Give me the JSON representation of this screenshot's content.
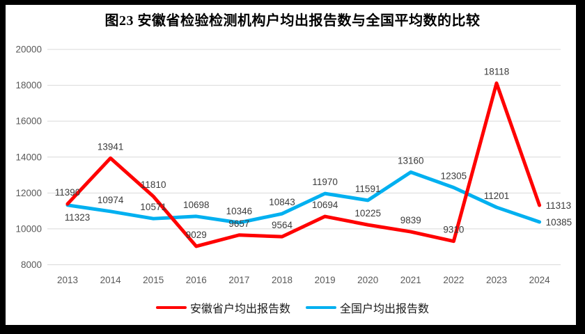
{
  "title": "图23 安徽省检验检测机构户均出报告数与全国平均数的比较",
  "legend": [
    {
      "id": "anhui",
      "label": "安徽省户均出报告数",
      "color": "#FF0000"
    },
    {
      "id": "national",
      "label": "全国户均出报告数",
      "color": "#00B0F0"
    }
  ],
  "colors": {
    "grid": "#D9D9D9",
    "tick_label": "#595959",
    "data_label": "#3B3B3B",
    "border": "#000000"
  },
  "chart_data": {
    "type": "line",
    "title": "图23 安徽省检验检测机构户均出报告数与全国平均数的比较",
    "categories": [
      "2013",
      "2014",
      "2015",
      "2016",
      "2017",
      "2018",
      "2019",
      "2020",
      "2021",
      "2022",
      "2023",
      "2024"
    ],
    "series": [
      {
        "id": "anhui",
        "name": "安徽省户均出报告数",
        "color": "#FF0000",
        "values": [
          11390,
          13941,
          11810,
          9029,
          9657,
          9564,
          10694,
          10225,
          9839,
          9310,
          18118,
          11313
        ],
        "label_pos": [
          "above",
          "above",
          "above",
          "above",
          "above",
          "above",
          "above",
          "above",
          "above",
          "above",
          "above",
          "right"
        ]
      },
      {
        "id": "national",
        "name": "全国户均出报告数",
        "color": "#00B0F0",
        "values": [
          11323,
          10974,
          10571,
          10698,
          10346,
          10843,
          11970,
          11591,
          13160,
          12305,
          11201,
          10385
        ],
        "label_pos": [
          "below",
          "above",
          "above",
          "above",
          "above",
          "above",
          "above",
          "above",
          "above",
          "above",
          "above",
          "right"
        ]
      }
    ],
    "y_ticks": [
      8000,
      10000,
      12000,
      14000,
      16000,
      18000,
      20000
    ],
    "ylim": [
      8000,
      20000
    ],
    "xlabel": "",
    "ylabel": "",
    "grid": true,
    "legend_position": "bottom",
    "data_labels": true
  }
}
